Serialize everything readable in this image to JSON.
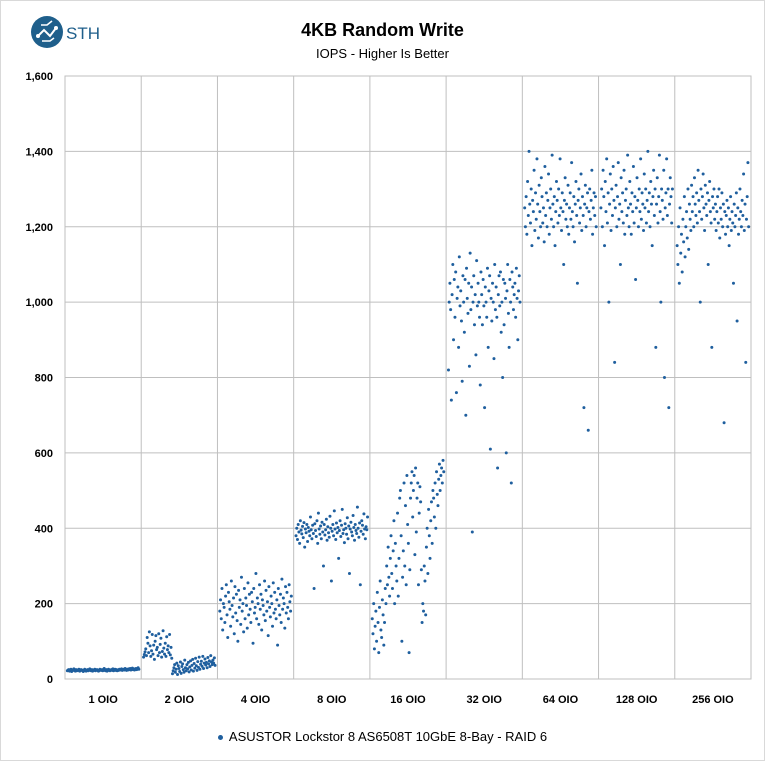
{
  "brand": {
    "logo_text": "STH",
    "logo_color": "#1f5f8b"
  },
  "chart_data": {
    "type": "scatter",
    "title": "4KB Random Write",
    "subtitle": "IOPS - Higher Is Better",
    "xlabel": "",
    "ylabel": "",
    "ylim": [
      0,
      1600
    ],
    "yticks": [
      0,
      200,
      400,
      600,
      800,
      1000,
      1200,
      1400,
      1600
    ],
    "ytick_labels": [
      "0",
      "200",
      "400",
      "600",
      "800",
      "1,000",
      "1,200",
      "1,400",
      "1,600"
    ],
    "categories": [
      "1 OIO",
      "2 OIO",
      "4 OIO",
      "8 OIO",
      "16 OIO",
      "32 OIO",
      "64 OIO",
      "128 OIO",
      "256 OIO"
    ],
    "grid": true,
    "legend_position": "bottom",
    "series": [
      {
        "name": "ASUSTOR Lockstor 8 AS6508T 10GbE 8-Bay - RAID 6",
        "color": "#1f5f9e",
        "points_per_category": 100,
        "values": [
          [
            22,
            24,
            25,
            21,
            23,
            26,
            20,
            22,
            24,
            27,
            23,
            21,
            25,
            22,
            24,
            23,
            26,
            21,
            22,
            25,
            24,
            23,
            20,
            22,
            26,
            24,
            21,
            23,
            25,
            22,
            24,
            27,
            23,
            22,
            25,
            21,
            24,
            23,
            26,
            22,
            24,
            25,
            23,
            21,
            22,
            26,
            24,
            23,
            25,
            22,
            24,
            28,
            23,
            22,
            25,
            21,
            24,
            26,
            23,
            22,
            24,
            25,
            23,
            27,
            22,
            24,
            26,
            23,
            25,
            22,
            24,
            23,
            26,
            25,
            24,
            27,
            23,
            25,
            26,
            24,
            28,
            25,
            23,
            26,
            24,
            27,
            25,
            28,
            24,
            26,
            29,
            25,
            27,
            24,
            26,
            28,
            25,
            27,
            30,
            26
          ],
          [
            58,
            65,
            72,
            80,
            62,
            110,
            95,
            70,
            125,
            88,
            60,
            75,
            118,
            66,
            90,
            52,
            100,
            115,
            78,
            84,
            62,
            120,
            70,
            92,
            108,
            58,
            73,
            128,
            82,
            66,
            95,
            60,
            112,
            78,
            88,
            70,
            118,
            64,
            84,
            55,
            14,
            22,
            30,
            38,
            18,
            26,
            42,
            12,
            35,
            28,
            20,
            45,
            15,
            33,
            40,
            25,
            18,
            50,
            30,
            22,
            38,
            27,
            44,
            19,
            32,
            48,
            24,
            36,
            52,
            21,
            41,
            29,
            55,
            35,
            23,
            46,
            31,
            58,
            26,
            39,
            47,
            34,
            60,
            28,
            42,
            53,
            37,
            44,
            30,
            57,
            40,
            48,
            33,
            62,
            45,
            38,
            50,
            42,
            56,
            36
          ],
          [
            180,
            210,
            160,
            240,
            130,
            200,
            190,
            150,
            220,
            250,
            170,
            110,
            230,
            205,
            185,
            140,
            260,
            195,
            165,
            215,
            120,
            245,
            175,
            225,
            155,
            100,
            235,
            190,
            210,
            145,
            270,
            180,
            200,
            125,
            240,
            160,
            215,
            195,
            135,
            255,
            170,
            225,
            185,
            150,
            230,
            205,
            95,
            240,
            175,
            190,
            280,
            160,
            215,
            200,
            145,
            250,
            185,
            225,
            130,
            210,
            195,
            170,
            260,
            155,
            235,
            180,
            205,
            115,
            245,
            190,
            165,
            220,
            200,
            140,
            255,
            175,
            230,
            185,
            160,
            210,
            90,
            240,
            195,
            170,
            225,
            150,
            265,
            185,
            215,
            200,
            135,
            245,
            175,
            230,
            190,
            160,
            250,
            205,
            180,
            220
          ],
          [
            380,
            400,
            370,
            410,
            390,
            360,
            420,
            395,
            385,
            405,
            375,
            415,
            350,
            398,
            388,
            410,
            365,
            402,
            392,
            380,
            430,
            396,
            372,
            408,
            386,
            240,
            412,
            394,
            378,
            420,
            360,
            440,
            398,
            384,
            406,
            372,
            416,
            390,
            300,
            410,
            382,
            396,
            424,
            368,
            404,
            388,
            376,
            432,
            400,
            260,
            392,
            410,
            380,
            446,
            398,
            370,
            414,
            388,
            402,
            320,
            394,
            420,
            378,
            408,
            450,
            386,
            396,
            362,
            412,
            400,
            384,
            428,
            372,
            406,
            280,
            398,
            416,
            390,
            380,
            434,
            402,
            368,
            410,
            394,
            386,
            456,
            400,
            376,
            414,
            250,
            392,
            420,
            408,
            384,
            438,
            398,
            372,
            404,
            396,
            430
          ],
          [
            160,
            120,
            200,
            80,
            140,
            180,
            100,
            230,
            150,
            70,
            190,
            260,
            130,
            110,
            210,
            170,
            90,
            150,
            240,
            200,
            300,
            250,
            350,
            270,
            220,
            320,
            380,
            280,
            240,
            340,
            420,
            200,
            360,
            300,
            260,
            440,
            220,
            320,
            480,
            500,
            380,
            100,
            270,
            340,
            520,
            300,
            460,
            250,
            540,
            410,
            360,
            70,
            290,
            480,
            520,
            550,
            430,
            500,
            540,
            330,
            560,
            390,
            480,
            520,
            250,
            440,
            510,
            470,
            290,
            150,
            200,
            180,
            300,
            260,
            170,
            350,
            400,
            280,
            450,
            380,
            320,
            420,
            470,
            360,
            500,
            480,
            430,
            520,
            400,
            550,
            490,
            460,
            530,
            570,
            500,
            540,
            560,
            520,
            580,
            550
          ],
          [
            820,
            1000,
            1050,
            980,
            740,
            1020,
            1100,
            900,
            1060,
            960,
            1080,
            760,
            1010,
            1040,
            880,
            1120,
            990,
            1030,
            950,
            790,
            1070,
            1000,
            920,
            1060,
            700,
            1090,
            1010,
            970,
            1050,
            830,
            1130,
            980,
            1040,
            390,
            1000,
            1070,
            940,
            1020,
            860,
            1110,
            990,
            1050,
            1000,
            960,
            780,
            1080,
            1020,
            940,
            1060,
            990,
            720,
            1040,
            1000,
            960,
            1090,
            880,
            1030,
            1070,
            610,
            1010,
            950,
            1050,
            1000,
            850,
            1100,
            980,
            1040,
            960,
            560,
            1020,
            1070,
            990,
            1080,
            920,
            1000,
            800,
            1060,
            940,
            1050,
            1010,
            600,
            1030,
            1100,
            970,
            880,
            1060,
            1000,
            520,
            1080,
            1040,
            980,
            1020,
            1050,
            960,
            1090,
            1010,
            900,
            1030,
            1070,
            1000
          ],
          [
            1250,
            1200,
            1280,
            1180,
            1320,
            1230,
            1400,
            1260,
            1210,
            1300,
            1150,
            1270,
            1240,
            1350,
            1190,
            1290,
            1220,
            1380,
            1260,
            1170,
            1310,
            1240,
            1200,
            1330,
            1280,
            1210,
            1250,
            1160,
            1360,
            1230,
            1290,
            1200,
            1270,
            1340,
            1180,
            1250,
            1300,
            1220,
            1390,
            1260,
            1200,
            1280,
            1150,
            1240,
            1320,
            1270,
            1210,
            1300,
            1230,
            1380,
            1250,
            1190,
            1290,
            1240,
            1100,
            1270,
            1330,
            1220,
            1260,
            1200,
            1310,
            1180,
            1250,
            1290,
            1220,
            1370,
            1240,
            1200,
            1280,
            1160,
            1260,
            1320,
            1230,
            1050,
            1270,
            1300,
            1210,
            1250,
            1340,
            1190,
            1280,
            1230,
            720,
            1260,
            1310,
            1200,
            1250,
            1290,
            660,
            1240,
            1300,
            1220,
            1270,
            1350,
            1180,
            1250,
            1290,
            1230,
            1280,
            1200
          ],
          [
            1250,
            1300,
            1200,
            1350,
            1280,
            1150,
            1320,
            1240,
            1380,
            1210,
            1290,
            1000,
            1260,
            1340,
            1190,
            1300,
            1230,
            1360,
            1270,
            840,
            1250,
            1310,
            1200,
            1280,
            1370,
            1220,
            1260,
            1100,
            1330,
            1240,
            1290,
            1210,
            1350,
            1180,
            1270,
            1300,
            1230,
            1390,
            1250,
            1200,
            1320,
            1260,
            1180,
            1290,
            1240,
            1360,
            1210,
            1280,
            1060,
            1250,
            1330,
            1270,
            1200,
            1300,
            1240,
            1380,
            1220,
            1290,
            1260,
            1190,
            1340,
            1250,
            1300,
            1210,
            1270,
            1400,
            1240,
            1290,
            1200,
            1320,
            1260,
            1150,
            1280,
            1350,
            1230,
            1300,
            880,
            1260,
            1330,
            1210,
            1280,
            1390,
            1240,
            1000,
            1300,
            1270,
            1220,
            1350,
            800,
            1250,
            1290,
            1380,
            1230,
            1300,
            720,
            1260,
            1330,
            1280,
            1210,
            1300
          ],
          [
            1150,
            1100,
            1200,
            1050,
            1250,
            1130,
            1180,
            1080,
            1220,
            1160,
            1280,
            1120,
            1200,
            1240,
            1170,
            1300,
            1140,
            1260,
            1220,
            1190,
            1310,
            1240,
            1280,
            1200,
            1330,
            1260,
            1230,
            1290,
            1210,
            1350,
            1270,
            1240,
            1000,
            1300,
            1220,
            1280,
            1340,
            1250,
            1190,
            1310,
            1260,
            1230,
            1290,
            1100,
            1270,
            1320,
            1240,
            1210,
            880,
            1280,
            1250,
            1300,
            1220,
            1260,
            1190,
            1240,
            1280,
            1210,
            1300,
            1170,
            1250,
            1220,
            1290,
            1200,
            1260,
            680,
            1240,
            1180,
            1230,
            1270,
            1200,
            1250,
            1150,
            1220,
            1280,
            1190,
            1240,
            1210,
            1050,
            1260,
            1200,
            1230,
            1290,
            950,
            1250,
            1180,
            1220,
            1300,
            1240,
            1200,
            1270,
            1230,
            1340,
            1190,
            1260,
            840,
            1220,
            1280,
            1370,
            1200
          ]
        ]
      }
    ]
  }
}
